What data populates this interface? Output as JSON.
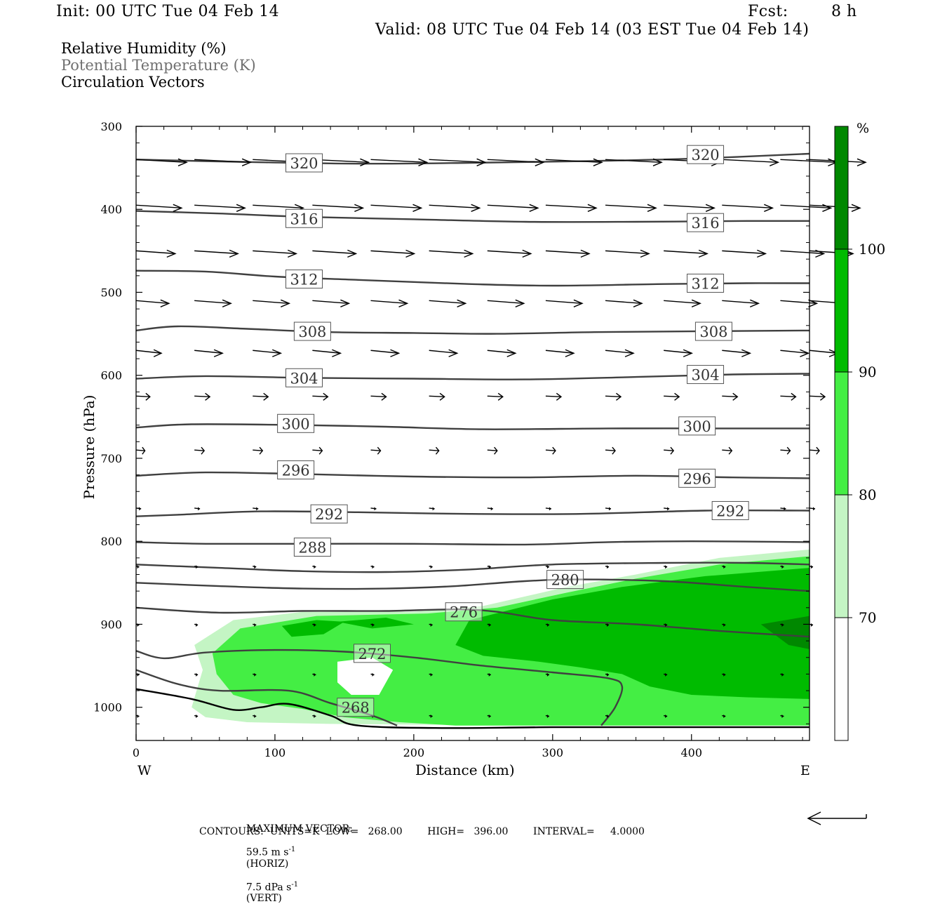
{
  "header": {
    "init": "Init: 00 UTC Tue 04 Feb 14",
    "fcst_label": "Fcst:",
    "fcst_value": "8 h",
    "valid": "Valid: 08 UTC Tue 04 Feb 14 (03 EST Tue 04 Feb 14)"
  },
  "fields": [
    {
      "label": "Relative Humidity (%)",
      "color": "#000000"
    },
    {
      "label": "Potential Temperature (K)",
      "color": "#707070"
    },
    {
      "label": "Circulation Vectors",
      "color": "#000000"
    }
  ],
  "footer": {
    "max_vector_label": "MAXIMUM VECTOR:",
    "max_vector_horiz": "59.5 m s",
    "max_vector_horiz_exp": "-1",
    "max_vector_horiz_tag": "(HORIZ)",
    "max_vector_vert": "7.5 dPa s",
    "max_vector_vert_exp": "-1",
    "max_vector_vert_tag": "(VERT)",
    "contours": "CONTOURS:  UNITS=K  LOW=   268.00        HIGH=   396.00        INTERVAL=     4.0000"
  },
  "chart_data": {
    "type": "cross-section",
    "xlabel": "Distance (km)",
    "ylabel": "Pressure (hPa)",
    "xlim": [
      0,
      485
    ],
    "ylim": [
      1040,
      300
    ],
    "x_ticks": [
      0,
      100,
      200,
      300,
      400
    ],
    "y_ticks": [
      300,
      400,
      500,
      600,
      700,
      800,
      900,
      1000
    ],
    "x_end_labels": {
      "left": "W",
      "right": "E"
    },
    "colorbar": {
      "unit": "%",
      "levels": [
        70,
        80,
        90,
        100
      ],
      "colors": [
        "#ffffff",
        "#c4f5c4",
        "#44ee44",
        "#00bb00",
        "#008800"
      ]
    },
    "theta_contours": [
      {
        "value": 320,
        "points": [
          [
            0,
            340
          ],
          [
            80,
            343
          ],
          [
            160,
            345
          ],
          [
            240,
            344
          ],
          [
            320,
            342
          ],
          [
            400,
            339
          ],
          [
            485,
            333
          ]
        ],
        "labels": [
          [
            121,
            344
          ],
          [
            410,
            334
          ]
        ]
      },
      {
        "value": 316,
        "points": [
          [
            0,
            402
          ],
          [
            60,
            405
          ],
          [
            120,
            409
          ],
          [
            200,
            412
          ],
          [
            280,
            415
          ],
          [
            360,
            415
          ],
          [
            440,
            414
          ],
          [
            485,
            414
          ]
        ],
        "labels": [
          [
            121,
            411
          ],
          [
            410,
            416
          ]
        ]
      },
      {
        "value": 312,
        "points": [
          [
            0,
            474
          ],
          [
            50,
            475
          ],
          [
            100,
            481
          ],
          [
            160,
            485
          ],
          [
            240,
            490
          ],
          [
            300,
            492
          ],
          [
            380,
            490
          ],
          [
            440,
            489
          ],
          [
            485,
            489
          ]
        ],
        "labels": [
          [
            121,
            484
          ],
          [
            410,
            489
          ]
        ]
      },
      {
        "value": 308,
        "points": [
          [
            0,
            546
          ],
          [
            30,
            541
          ],
          [
            80,
            544
          ],
          [
            140,
            548
          ],
          [
            200,
            549
          ],
          [
            260,
            550
          ],
          [
            330,
            548
          ],
          [
            400,
            547
          ],
          [
            485,
            546
          ]
        ],
        "labels": [
          [
            127,
            547
          ],
          [
            416,
            547
          ]
        ]
      },
      {
        "value": 304,
        "points": [
          [
            0,
            604
          ],
          [
            50,
            601
          ],
          [
            120,
            603
          ],
          [
            200,
            604
          ],
          [
            280,
            605
          ],
          [
            360,
            602
          ],
          [
            430,
            599
          ],
          [
            485,
            598
          ]
        ],
        "labels": [
          [
            121,
            603
          ],
          [
            410,
            599
          ]
        ]
      },
      {
        "value": 300,
        "points": [
          [
            0,
            663
          ],
          [
            40,
            659
          ],
          [
            120,
            660
          ],
          [
            180,
            662
          ],
          [
            250,
            665
          ],
          [
            340,
            664
          ],
          [
            410,
            664
          ],
          [
            485,
            664
          ]
        ],
        "labels": [
          [
            115,
            658
          ],
          [
            404,
            661
          ]
        ]
      },
      {
        "value": 296,
        "points": [
          [
            0,
            721
          ],
          [
            50,
            717
          ],
          [
            120,
            719
          ],
          [
            200,
            722
          ],
          [
            280,
            723
          ],
          [
            360,
            721
          ],
          [
            430,
            723
          ],
          [
            485,
            724
          ]
        ],
        "labels": [
          [
            115,
            714
          ],
          [
            404,
            724
          ]
        ]
      },
      {
        "value": 292,
        "points": [
          [
            0,
            770
          ],
          [
            30,
            768
          ],
          [
            90,
            764
          ],
          [
            160,
            765
          ],
          [
            240,
            767
          ],
          [
            320,
            767
          ],
          [
            410,
            763
          ],
          [
            485,
            763
          ]
        ],
        "labels": [
          [
            139,
            767
          ],
          [
            428,
            763
          ]
        ]
      },
      {
        "value": 288,
        "points": [
          [
            0,
            801
          ],
          [
            50,
            803
          ],
          [
            120,
            803
          ],
          [
            200,
            803
          ],
          [
            280,
            804
          ],
          [
            340,
            801
          ],
          [
            400,
            800
          ],
          [
            485,
            801
          ]
        ],
        "labels": [
          [
            127,
            807
          ],
          [
            null,
            null
          ]
        ]
      },
      {
        "value": 284,
        "points": [
          [
            0,
            828
          ],
          [
            60,
            832
          ],
          [
            120,
            836
          ],
          [
            180,
            837
          ],
          [
            240,
            834
          ],
          [
            300,
            828
          ],
          [
            380,
            826
          ],
          [
            440,
            826
          ],
          [
            485,
            828
          ]
        ],
        "labels": []
      },
      {
        "value": 280,
        "points": [
          [
            0,
            850
          ],
          [
            60,
            854
          ],
          [
            120,
            857
          ],
          [
            180,
            857
          ],
          [
            230,
            854
          ],
          [
            280,
            848
          ],
          [
            320,
            846
          ],
          [
            380,
            848
          ],
          [
            440,
            855
          ],
          [
            485,
            860
          ]
        ],
        "labels": [
          [
            309,
            846
          ]
        ]
      },
      {
        "value": 276,
        "points": [
          [
            0,
            880
          ],
          [
            60,
            886
          ],
          [
            120,
            884
          ],
          [
            180,
            884
          ],
          [
            230,
            882
          ],
          [
            260,
            885
          ],
          [
            300,
            895
          ],
          [
            360,
            900
          ],
          [
            420,
            908
          ],
          [
            485,
            915
          ]
        ],
        "labels": [
          [
            236,
            885
          ]
        ]
      },
      {
        "value": 272,
        "points": [
          [
            0,
            932
          ],
          [
            20,
            941
          ],
          [
            50,
            934
          ],
          [
            100,
            931
          ],
          [
            150,
            933
          ],
          [
            200,
            940
          ],
          [
            250,
            950
          ],
          [
            300,
            958
          ],
          [
            340,
            965
          ],
          [
            350,
            975
          ],
          [
            345,
            1000
          ],
          [
            335,
            1022
          ]
        ],
        "labels": [
          [
            170,
            935
          ]
        ]
      },
      {
        "value": 268,
        "points": [
          [
            0,
            955
          ],
          [
            30,
            972
          ],
          [
            60,
            980
          ],
          [
            110,
            980
          ],
          [
            140,
            995
          ],
          [
            170,
            1010
          ],
          [
            188,
            1022
          ]
        ],
        "labels": [
          [
            158,
            1000
          ]
        ]
      },
      {
        "value": 264,
        "points": [
          [
            0,
            978
          ],
          [
            40,
            990
          ],
          [
            70,
            1003
          ],
          [
            90,
            1000
          ],
          [
            110,
            996
          ],
          [
            140,
            1010
          ],
          [
            160,
            1022
          ],
          [
            220,
            1025
          ],
          [
            300,
            1024
          ],
          [
            400,
            1024
          ],
          [
            485,
            1024
          ]
        ],
        "labels": []
      }
    ],
    "rh_regions": [
      {
        "level": 70,
        "polygon": [
          [
            42,
            925
          ],
          [
            70,
            895
          ],
          [
            120,
            885
          ],
          [
            200,
            885
          ],
          [
            250,
            878
          ],
          [
            310,
            855
          ],
          [
            360,
            840
          ],
          [
            420,
            820
          ],
          [
            485,
            810
          ],
          [
            485,
            1022
          ],
          [
            280,
            1022
          ],
          [
            140,
            1020
          ],
          [
            80,
            1018
          ],
          [
            50,
            1012
          ],
          [
            40,
            1000
          ],
          [
            48,
            955
          ]
        ]
      },
      {
        "level": 80,
        "polygon": [
          [
            55,
            935
          ],
          [
            75,
            905
          ],
          [
            130,
            890
          ],
          [
            210,
            887
          ],
          [
            260,
            880
          ],
          [
            310,
            862
          ],
          [
            360,
            845
          ],
          [
            420,
            828
          ],
          [
            485,
            818
          ],
          [
            485,
            1022
          ],
          [
            230,
            1022
          ],
          [
            190,
            1018
          ],
          [
            150,
            1012
          ],
          [
            120,
            1002
          ],
          [
            90,
            995
          ],
          [
            70,
            985
          ],
          [
            58,
            960
          ]
        ]
      },
      {
        "level": 90,
        "polygon": [
          [
            240,
            895
          ],
          [
            300,
            870
          ],
          [
            350,
            855
          ],
          [
            410,
            842
          ],
          [
            485,
            832
          ],
          [
            485,
            990
          ],
          [
            440,
            988
          ],
          [
            400,
            985
          ],
          [
            370,
            975
          ],
          [
            350,
            960
          ],
          [
            320,
            952
          ],
          [
            290,
            945
          ],
          [
            250,
            938
          ],
          [
            230,
            925
          ]
        ]
      },
      {
        "level": 90,
        "polygon": [
          [
            105,
            902
          ],
          [
            130,
            895
          ],
          [
            150,
            897
          ],
          [
            135,
            912
          ],
          [
            112,
            915
          ]
        ]
      },
      {
        "level": 90,
        "polygon": [
          [
            145,
            897
          ],
          [
            180,
            892
          ],
          [
            200,
            900
          ],
          [
            170,
            905
          ]
        ]
      },
      {
        "level": 100,
        "polygon": [
          [
            450,
            900
          ],
          [
            485,
            890
          ],
          [
            485,
            930
          ],
          [
            470,
            925
          ]
        ]
      }
    ],
    "rh_holes_below_70": [
      {
        "polygon": [
          [
            145,
            945
          ],
          [
            170,
            940
          ],
          [
            185,
            955
          ],
          [
            175,
            985
          ],
          [
            155,
            985
          ],
          [
            145,
            970
          ]
        ]
      }
    ],
    "vectors": {
      "columns_x": [
        0,
        42,
        84,
        127,
        169,
        211,
        253,
        295,
        338,
        380,
        422,
        464,
        485
      ],
      "rows_p": [
        340,
        395,
        450,
        510,
        570,
        625,
        690,
        760,
        830,
        900,
        960,
        1010
      ],
      "speed_scale_note": "arrows point eastward; length proportional to horizontal wind"
    }
  }
}
